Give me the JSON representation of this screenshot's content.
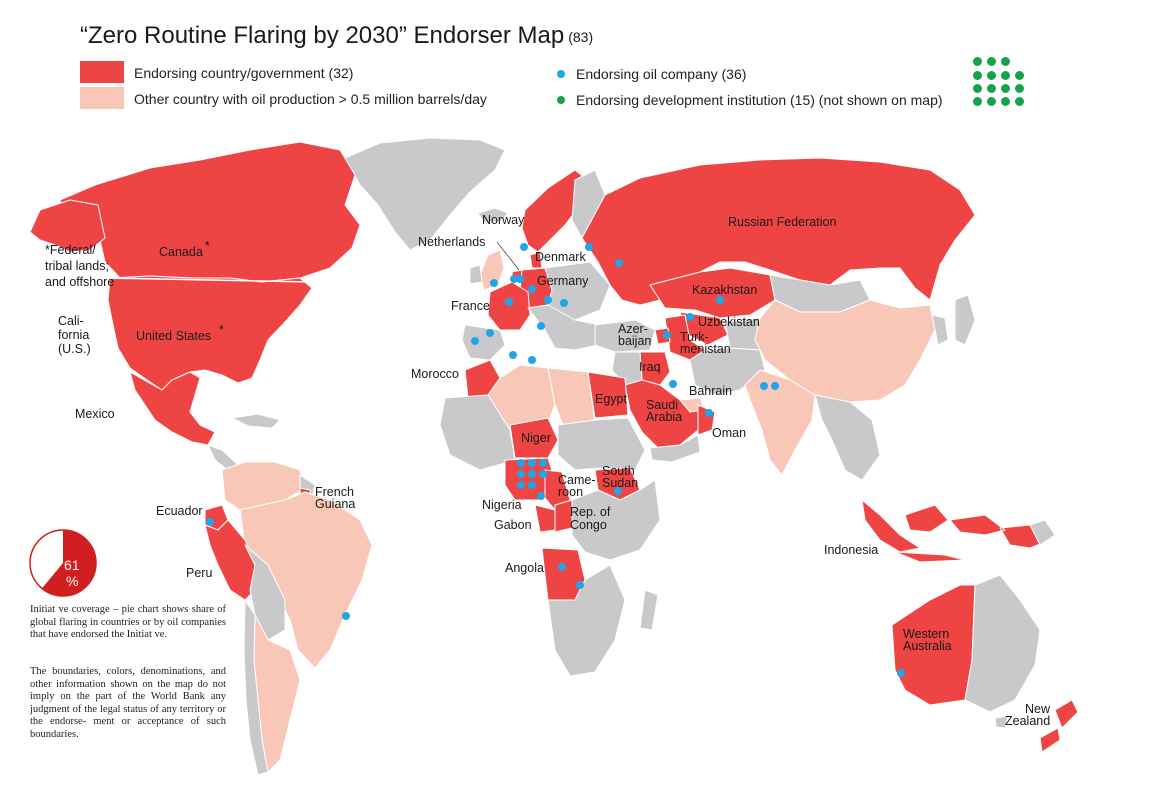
{
  "title": "“Zero Routine Flaring by 2030” Endorser Map",
  "title_count": "(83)",
  "colors": {
    "endorser": "#ef4444",
    "other_oil": "#f9c7b8",
    "neutral": "#c9c9cb",
    "company_dot": "#1ea7e8",
    "institution_dot": "#16a34a",
    "border": "#ffffff"
  },
  "legend": {
    "endorsing_country": "Endorsing country/government (32)",
    "other_country": "Other country with oil production > 0.5 million barrels/day",
    "oil_company": "Endorsing oil company (36)",
    "dev_institution": "Endorsing development institution (15) (not shown on map)"
  },
  "labels": {
    "russia": "Russian Federation",
    "canada": "Canada",
    "canada_star": "*",
    "federal_note_1": "*Federal/",
    "federal_note_2": "tribal lands;",
    "federal_note_3": "and offshore",
    "california_1": "Cali-",
    "california_2": "fornia",
    "california_3": "(U.S.)",
    "usa": "United States",
    "usa_star": "*",
    "mexico": "Mexico",
    "norway": "Norway",
    "netherlands": "Netherlands",
    "denmark": "Denmark",
    "germany": "Germany",
    "france": "France",
    "kazakhstan": "Kazakhstan",
    "uzbekistan": "Uzbekistan",
    "turkmenistan_1": "Turk-",
    "turkmenistan_2": "menistan",
    "azerbaijan_1": "Azer-",
    "azerbaijan_2": "baijan",
    "morocco": "Morocco",
    "iraq": "Iraq",
    "bahrain": "Bahrain",
    "egypt": "Egypt",
    "saudi_1": "Saudi",
    "saudi_2": "Arabia",
    "oman": "Oman",
    "niger": "Niger",
    "south_sudan_1": "South",
    "south_sudan_2": "Sudan",
    "cameroon_1": "Came-",
    "cameroon_2": "roon",
    "nigeria": "Nigeria",
    "gabon": "Gabon",
    "congo_1": "Rep. of",
    "congo_2": "Congo",
    "angola": "Angola",
    "french_guiana_1": "French",
    "french_guiana_2": "Guiana",
    "ecuador": "Ecuador",
    "peru": "Peru",
    "indonesia": "Indonesia",
    "western_australia_1": "Western",
    "western_australia_2": "Australia",
    "new_zealand_1": "New",
    "new_zealand_2": "Zealand"
  },
  "pie": {
    "share_percent": 61,
    "label_number": "61",
    "label_unit": "%"
  },
  "notes": {
    "coverage": "Initiat ve coverage – pie chart shows share of global flaring in countries or by oil companies that have endorsed the Initiat ve.",
    "disclaimer": "The boundaries, colors, denominations, and other information shown on the map do not imply on the part of the World Bank any judgment of the legal status of any territory or the endorse- ment or acceptance of such boundaries."
  }
}
